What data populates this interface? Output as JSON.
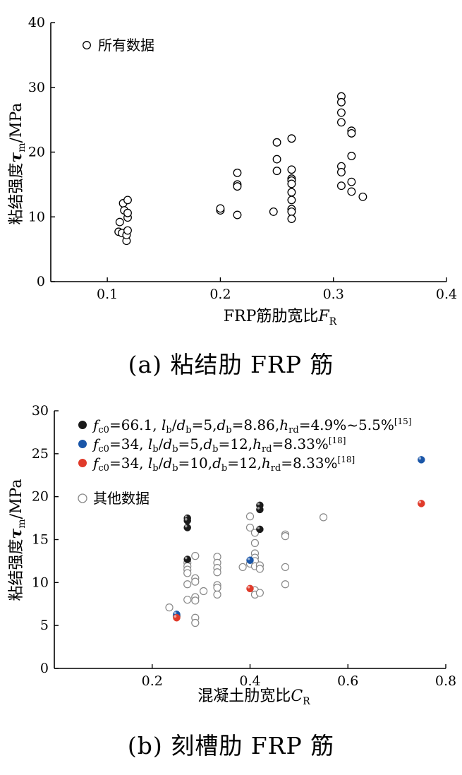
{
  "chart_data": [
    {
      "type": "scatter",
      "caption": "(a) 粘结肋 FRP 筋",
      "xlabel": "FRP筋肋宽比",
      "xlabel_symbol": "F",
      "xlabel_sub": "R",
      "ylabel": "粘结强度",
      "ylabel_symbol": "τ",
      "ylabel_sub": "m",
      "ylabel_unit": "/MPa",
      "xlim": [
        0.05,
        0.4
      ],
      "ylim": [
        0,
        40
      ],
      "xticks": [
        "0.1",
        "0.2",
        "0.3",
        "0.4"
      ],
      "xtick_values": [
        0.1,
        0.2,
        0.3,
        0.4
      ],
      "yticks": [
        "0",
        "10",
        "20",
        "30",
        "40"
      ],
      "ytick_values": [
        0,
        10,
        20,
        30,
        40
      ],
      "legend_position": "top-left",
      "series": [
        {
          "name": "所有数据",
          "marker": "open-circle",
          "color": "#000000",
          "points": [
            [
              0.11,
              7.7
            ],
            [
              0.111,
              9.2
            ],
            [
              0.113,
              7.5
            ],
            [
              0.114,
              12.1
            ],
            [
              0.115,
              11.0
            ],
            [
              0.117,
              6.3
            ],
            [
              0.117,
              7.2
            ],
            [
              0.118,
              7.9
            ],
            [
              0.118,
              9.9
            ],
            [
              0.118,
              10.6
            ],
            [
              0.118,
              12.6
            ],
            [
              0.2,
              11.0
            ],
            [
              0.2,
              11.3
            ],
            [
              0.215,
              16.8
            ],
            [
              0.215,
              15.0
            ],
            [
              0.215,
              14.7
            ],
            [
              0.215,
              10.3
            ],
            [
              0.247,
              10.8
            ],
            [
              0.25,
              21.5
            ],
            [
              0.25,
              18.9
            ],
            [
              0.25,
              17.1
            ],
            [
              0.263,
              22.1
            ],
            [
              0.263,
              17.3
            ],
            [
              0.263,
              15.9
            ],
            [
              0.263,
              15.6
            ],
            [
              0.263,
              15.1
            ],
            [
              0.263,
              13.8
            ],
            [
              0.263,
              12.6
            ],
            [
              0.263,
              11.2
            ],
            [
              0.263,
              10.8
            ],
            [
              0.263,
              9.7
            ],
            [
              0.307,
              28.6
            ],
            [
              0.307,
              27.7
            ],
            [
              0.307,
              26.1
            ],
            [
              0.307,
              24.6
            ],
            [
              0.307,
              17.8
            ],
            [
              0.307,
              16.9
            ],
            [
              0.307,
              14.8
            ],
            [
              0.316,
              23.3
            ],
            [
              0.316,
              22.9
            ],
            [
              0.316,
              19.4
            ],
            [
              0.316,
              15.4
            ],
            [
              0.316,
              13.9
            ],
            [
              0.326,
              13.1
            ]
          ]
        }
      ]
    },
    {
      "type": "scatter",
      "caption": "(b) 刻槽肋 FRP 筋",
      "xlabel": "混凝土肋宽比",
      "xlabel_symbol": "C",
      "xlabel_sub": "R",
      "ylabel": "粘结强度",
      "ylabel_symbol": "τ",
      "ylabel_sub": "m",
      "ylabel_unit": "/MPa",
      "xlim": [
        0,
        0.8
      ],
      "ylim": [
        0,
        30
      ],
      "xticks": [
        "0.2",
        "0.4",
        "0.6",
        "0.8"
      ],
      "xtick_values": [
        0.2,
        0.4,
        0.6,
        0.8
      ],
      "yticks": [
        "0",
        "5",
        "10",
        "15",
        "20",
        "25",
        "30"
      ],
      "ytick_values": [
        0,
        5,
        10,
        15,
        20,
        25,
        30
      ],
      "legend_position": "top-left",
      "series": [
        {
          "name": "f_c0=66.1, l_b/d_b=5,d_b=8.86,h_rd=4.9%~5.5%[15]",
          "label_parts": {
            "p1": "f",
            "s1": "c0",
            "t1": "=66.1, ",
            "p2": "l",
            "s2": "b",
            "t2": "/",
            "p3": "d",
            "s3": "b",
            "t3": "=5,",
            "p4": "d",
            "s4": "b",
            "t4": "=8.86,",
            "p5": "h",
            "s5": "rd",
            "t5": "=4.9%~5.5%",
            "ref": "[15]"
          },
          "marker": "filled-circle",
          "color": "#1a1a1a",
          "points": [
            [
              0.272,
              17.5
            ],
            [
              0.272,
              17.2
            ],
            [
              0.272,
              16.4
            ],
            [
              0.272,
              12.7
            ],
            [
              0.42,
              19.0
            ],
            [
              0.42,
              18.5
            ],
            [
              0.42,
              16.2
            ]
          ]
        },
        {
          "name": "f_c0=34, l_b/d_b=5,d_b=12,h_rd=8.33%[18]",
          "label_parts": {
            "p1": "f",
            "s1": "c0",
            "t1": "=34, ",
            "p2": "l",
            "s2": "b",
            "t2": "/",
            "p3": "d",
            "s3": "b",
            "t3": "=5,",
            "p4": "d",
            "s4": "b",
            "t4": "=12,",
            "p5": "h",
            "s5": "rd",
            "t5": "=8.33%",
            "ref": "[18]"
          },
          "marker": "filled-circle",
          "color": "#1a56a8",
          "points": [
            [
              0.25,
              6.3
            ],
            [
              0.4,
              12.6
            ],
            [
              0.75,
              24.3
            ]
          ]
        },
        {
          "name": "f_c0=34, l_b/d_b=10,d_b=12,h_rd=8.33%[18]",
          "label_parts": {
            "p1": "f",
            "s1": "c0",
            "t1": "=34, ",
            "p2": "l",
            "s2": "b",
            "t2": "/",
            "p3": "d",
            "s3": "b",
            "t3": "=10,",
            "p4": "d",
            "s4": "b",
            "t4": "=12,",
            "p5": "h",
            "s5": "rd",
            "t5": "=8.33%",
            "ref": "[18]"
          },
          "marker": "filled-circle",
          "color": "#e03a2a",
          "points": [
            [
              0.25,
              5.9
            ],
            [
              0.4,
              9.3
            ],
            [
              0.75,
              19.2
            ]
          ]
        },
        {
          "name": "其他数据",
          "marker": "open-circle",
          "color": "#888888",
          "points": [
            [
              0.235,
              7.1
            ],
            [
              0.25,
              6.1
            ],
            [
              0.272,
              12.3
            ],
            [
              0.272,
              11.9
            ],
            [
              0.272,
              11.5
            ],
            [
              0.272,
              11.1
            ],
            [
              0.272,
              9.8
            ],
            [
              0.272,
              8.0
            ],
            [
              0.288,
              13.1
            ],
            [
              0.288,
              10.5
            ],
            [
              0.288,
              10.1
            ],
            [
              0.288,
              8.3
            ],
            [
              0.288,
              7.9
            ],
            [
              0.288,
              5.9
            ],
            [
              0.288,
              5.3
            ],
            [
              0.305,
              9.0
            ],
            [
              0.333,
              13.0
            ],
            [
              0.333,
              12.3
            ],
            [
              0.333,
              11.7
            ],
            [
              0.333,
              11.2
            ],
            [
              0.333,
              9.7
            ],
            [
              0.333,
              9.4
            ],
            [
              0.333,
              8.6
            ],
            [
              0.385,
              11.8
            ],
            [
              0.4,
              17.7
            ],
            [
              0.4,
              16.4
            ],
            [
              0.4,
              12.2
            ],
            [
              0.41,
              15.8
            ],
            [
              0.41,
              14.6
            ],
            [
              0.41,
              13.4
            ],
            [
              0.41,
              12.9
            ],
            [
              0.41,
              12.5
            ],
            [
              0.41,
              11.9
            ],
            [
              0.41,
              9.1
            ],
            [
              0.41,
              8.6
            ],
            [
              0.42,
              12.0
            ],
            [
              0.42,
              11.6
            ],
            [
              0.42,
              8.8
            ],
            [
              0.472,
              15.6
            ],
            [
              0.472,
              15.4
            ],
            [
              0.472,
              11.8
            ],
            [
              0.472,
              9.8
            ],
            [
              0.55,
              17.6
            ]
          ]
        }
      ]
    }
  ]
}
